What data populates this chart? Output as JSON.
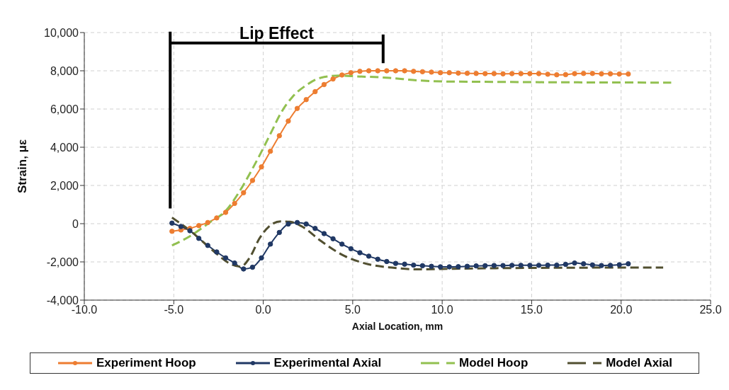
{
  "chart_data": {
    "type": "line",
    "xlabel": "Axial Location, mm",
    "ylabel": "Strain, με",
    "annotations": [
      "Lip Effect"
    ],
    "xlim": [
      -10,
      25
    ],
    "xticks": [
      {
        "value": -10,
        "label": "-10.0"
      },
      {
        "value": -5,
        "label": "-5.0"
      },
      {
        "value": 0,
        "label": "0.0"
      },
      {
        "value": 5,
        "label": "5.0"
      },
      {
        "value": 10,
        "label": "10.0"
      },
      {
        "value": 15,
        "label": "15.0"
      },
      {
        "value": 20,
        "label": "20.0"
      },
      {
        "value": 25,
        "label": "25.0"
      }
    ],
    "ylim": [
      -4000,
      10000
    ],
    "yticks": [
      {
        "value": -4000,
        "label": "-4,000"
      },
      {
        "value": -2000,
        "label": "-2,000"
      },
      0,
      {
        "value": 2000,
        "label": "2,000"
      },
      {
        "value": 4000,
        "label": "4,000"
      },
      {
        "value": 6000,
        "label": "6,000"
      },
      {
        "value": 8000,
        "label": "8,000"
      },
      {
        "value": 10000,
        "label": "10,000"
      }
    ],
    "grid": true,
    "legend": "bottom",
    "series": [
      {
        "name": "Experiment Hoop",
        "color": "#ed7d31",
        "marker": "circle",
        "line_style": "solid",
        "x": [
          -5.1,
          -4.6,
          -4.1,
          -3.6,
          -3.1,
          -2.6,
          -2.1,
          -1.6,
          -1.1,
          -0.6,
          -0.1,
          0.4,
          0.9,
          1.4,
          1.9,
          2.4,
          2.9,
          3.4,
          3.9,
          4.4,
          4.9,
          5.4,
          5.9,
          6.4,
          6.9,
          7.4,
          7.9,
          8.4,
          8.9,
          9.4,
          9.9,
          10.4,
          10.9,
          11.4,
          11.9,
          12.4,
          12.9,
          13.4,
          13.9,
          14.4,
          14.9,
          15.4,
          15.9,
          16.4,
          16.9,
          17.4,
          17.9,
          18.4,
          18.9,
          19.4,
          19.9,
          20.4
        ],
        "values": [
          -400,
          -330,
          -250,
          -100,
          60,
          300,
          590,
          1060,
          1620,
          2260,
          2970,
          3790,
          4600,
          5370,
          6030,
          6490,
          6910,
          7280,
          7570,
          7780,
          7900,
          7970,
          8000,
          8000,
          8000,
          8000,
          8000,
          7970,
          7950,
          7930,
          7900,
          7900,
          7880,
          7870,
          7860,
          7850,
          7850,
          7840,
          7850,
          7850,
          7850,
          7850,
          7820,
          7790,
          7800,
          7850,
          7860,
          7860,
          7840,
          7840,
          7830,
          7830
        ]
      },
      {
        "name": "Experimental Axial",
        "color": "#203864",
        "marker": "circle",
        "line_style": "solid",
        "x": [
          -5.1,
          -4.6,
          -4.1,
          -3.6,
          -3.1,
          -2.6,
          -2.1,
          -1.6,
          -1.1,
          -0.6,
          -0.1,
          0.4,
          0.9,
          1.4,
          1.9,
          2.4,
          2.9,
          3.4,
          3.9,
          4.4,
          4.9,
          5.4,
          5.9,
          6.4,
          6.9,
          7.4,
          7.9,
          8.4,
          8.9,
          9.4,
          9.9,
          10.4,
          10.9,
          11.4,
          11.9,
          12.4,
          12.9,
          13.4,
          13.9,
          14.4,
          14.9,
          15.4,
          15.9,
          16.4,
          16.9,
          17.4,
          17.9,
          18.4,
          18.9,
          19.4,
          19.9,
          20.4
        ],
        "values": [
          30,
          -150,
          -370,
          -770,
          -1140,
          -1480,
          -1790,
          -2060,
          -2370,
          -2280,
          -1790,
          -1070,
          -460,
          -20,
          60,
          -20,
          -250,
          -520,
          -790,
          -1070,
          -1310,
          -1520,
          -1700,
          -1860,
          -1980,
          -2080,
          -2120,
          -2170,
          -2200,
          -2230,
          -2260,
          -2260,
          -2250,
          -2230,
          -2210,
          -2200,
          -2190,
          -2190,
          -2180,
          -2180,
          -2180,
          -2180,
          -2170,
          -2170,
          -2130,
          -2060,
          -2100,
          -2160,
          -2190,
          -2180,
          -2150,
          -2100
        ]
      },
      {
        "name": "Model Hoop",
        "color": "#92c050",
        "marker": "none",
        "line_style": "dashed",
        "x": [
          -5.1,
          -4.0,
          -3.0,
          -2.06,
          -1.4,
          -0.6,
          -0.08,
          0.45,
          0.98,
          1.64,
          2.43,
          3.2,
          4.28,
          5.2,
          7.05,
          8.6,
          10.2,
          13,
          16,
          19,
          22.8
        ],
        "values": [
          -1140,
          -600,
          60,
          710,
          1580,
          2880,
          3800,
          4790,
          5780,
          6640,
          7260,
          7630,
          7750,
          7710,
          7630,
          7500,
          7440,
          7420,
          7400,
          7390,
          7380
        ]
      },
      {
        "name": "Model Axial",
        "color": "#514f30",
        "marker": "none",
        "line_style": "dashed",
        "x": [
          -5.1,
          -4.04,
          -2.7,
          -1.8,
          -1.27,
          -0.74,
          -0.21,
          0.32,
          0.98,
          1.5,
          2.17,
          3.2,
          4.54,
          5.86,
          7.18,
          8.63,
          10,
          13,
          16,
          19,
          22.35
        ],
        "values": [
          320,
          -400,
          -1500,
          -2120,
          -2250,
          -1750,
          -770,
          -150,
          120,
          100,
          -150,
          -890,
          -1690,
          -2120,
          -2300,
          -2390,
          -2370,
          -2330,
          -2310,
          -2300,
          -2300
        ]
      }
    ]
  }
}
